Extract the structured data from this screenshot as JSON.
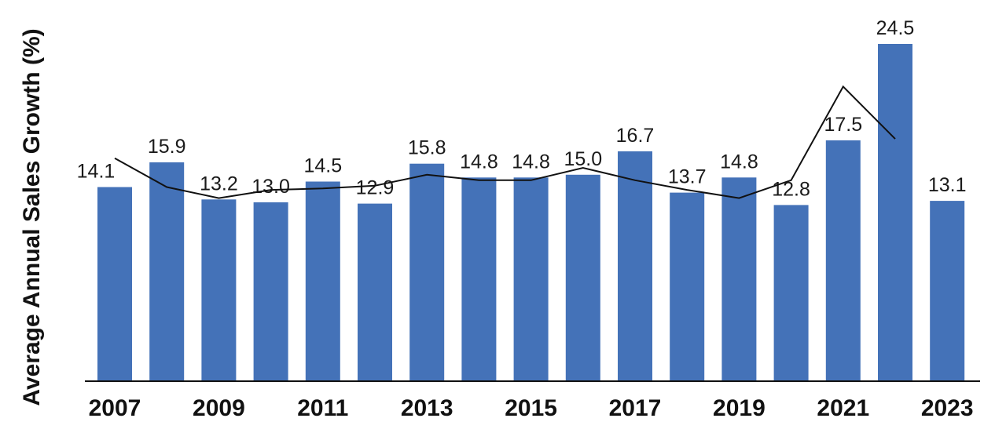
{
  "chart_data": {
    "type": "bar",
    "title": "",
    "xlabel": "",
    "ylabel": "Average Annual Sales Growth (%)",
    "ylim": [
      0,
      25
    ],
    "grid": false,
    "legend": "none",
    "colors": {
      "bar": "#4472b8",
      "line": "#111111"
    },
    "x": [
      2007,
      2008,
      2009,
      2010,
      2011,
      2012,
      2013,
      2014,
      2015,
      2016,
      2017,
      2018,
      2019,
      2020,
      2021,
      2022,
      2023
    ],
    "x_tick_labels": [
      "2007",
      "2009",
      "2011",
      "2013",
      "2015",
      "2017",
      "2019",
      "2021",
      "2023"
    ],
    "values": [
      14.1,
      15.9,
      13.2,
      13.0,
      14.5,
      12.9,
      15.8,
      14.8,
      14.8,
      15.0,
      16.7,
      13.7,
      14.8,
      12.8,
      17.5,
      24.5,
      13.1
    ],
    "value_labels": [
      "14.1",
      "15.9",
      "13.2",
      "13.0",
      "14.5",
      "12.9",
      "15.8",
      "14.8",
      "14.8",
      "15.0",
      "16.7",
      "13.7",
      "14.8",
      "12.8",
      "17.5",
      "24.5",
      "13.1"
    ],
    "line": {
      "x": [
        2007,
        2008,
        2009,
        2010,
        2011,
        2012,
        2013,
        2014,
        2015,
        2016,
        2017,
        2018,
        2019,
        2020,
        2021,
        2022
      ],
      "values": [
        16.2,
        14.1,
        13.3,
        13.9,
        14.0,
        14.2,
        15.0,
        14.6,
        14.6,
        15.5,
        14.6,
        13.9,
        13.3,
        14.6,
        21.4,
        17.6
      ]
    }
  }
}
